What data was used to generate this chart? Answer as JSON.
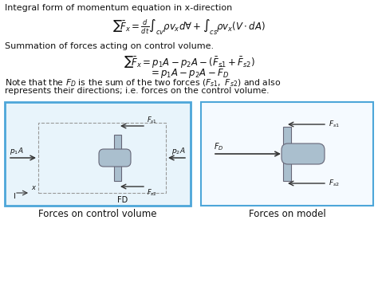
{
  "title_text": "Integral form of momentum equation in x-direction",
  "eq1": "$\\sum\\!\\bar{F}_x = \\frac{d}{dt}\\int_{cv} \\rho v_x d\\forall + \\int_{cs} \\rho v_x(V\\cdot dA)$",
  "text2": "Summation of forces acting on control volume.",
  "eq2a": "$\\sum\\!\\bar{F}_x = p_1A - p_2A - (\\bar{F}_{s1} + \\bar{F}_{s2})$",
  "eq2b": "$= p_1A - p_2A - \\bar{F}_D$",
  "note1": "Note that the $F_D$ is the sum of the two forces $(F_{s1},\\ F_{s2})$ and also",
  "note2": "represents their directions; i.e. forces on the control volume.",
  "label_left": "Forces on control volume",
  "label_right": "Forces on model",
  "bg_color": "#ffffff",
  "box_color_left": "#4da6d9",
  "box_color_right": "#888888",
  "arrow_color": "#333333",
  "body_color": "#aabfce",
  "body_edge": "#666677",
  "text_color": "#111111",
  "dashed_color": "#999999",
  "inner_bg": "#e8f4fb"
}
